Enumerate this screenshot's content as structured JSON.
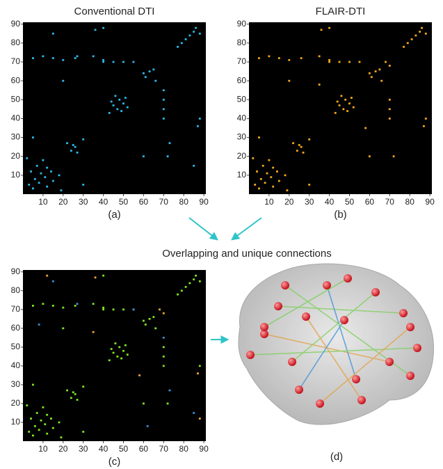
{
  "chart_data": [
    {
      "type": "scatter",
      "title": "Conventional DTI",
      "caption": "(a)",
      "background": "#000000",
      "xlim": [
        0,
        91
      ],
      "ylim": [
        0,
        91
      ],
      "xticks": [
        10,
        20,
        30,
        40,
        50,
        60,
        70,
        80,
        90
      ],
      "yticks": [
        10,
        20,
        30,
        40,
        50,
        60,
        70,
        80,
        90
      ],
      "series": [
        {
          "color": "#2bbbe8",
          "x": [
            3,
            5,
            6,
            8,
            9,
            11,
            12,
            14,
            4,
            12,
            7,
            15,
            10,
            18,
            2,
            19,
            25,
            26,
            24,
            22,
            27,
            30,
            5,
            10,
            15,
            20,
            26,
            35,
            40,
            45,
            50,
            85,
            83,
            81,
            79,
            86,
            88,
            77,
            65,
            63,
            61,
            60,
            66,
            45,
            47,
            48,
            50,
            46,
            52,
            49,
            44,
            51,
            43,
            70,
            70,
            70,
            70,
            40,
            55,
            72,
            30,
            5,
            60,
            20,
            88,
            40,
            15,
            85,
            36,
            87,
            73,
            27
          ],
          "y": [
            5,
            3,
            8,
            6,
            11,
            9,
            14,
            12,
            12,
            4,
            15,
            7,
            18,
            10,
            19,
            2,
            26,
            25,
            23,
            27,
            22,
            29,
            72,
            73,
            72,
            71,
            72,
            73,
            71,
            70,
            70,
            86,
            84,
            82,
            80,
            88,
            85,
            78,
            66,
            65,
            62,
            64,
            60,
            47,
            45,
            50,
            48,
            52,
            46,
            44,
            49,
            51,
            43,
            40,
            45,
            50,
            55,
            70,
            70,
            20,
            5,
            30,
            20,
            60,
            40,
            88,
            85,
            15,
            87,
            36,
            27,
            73
          ]
        }
      ]
    },
    {
      "type": "scatter",
      "title": "FLAIR-DTI",
      "caption": "(b)",
      "background": "#000000",
      "xlim": [
        0,
        91
      ],
      "ylim": [
        0,
        91
      ],
      "xticks": [
        10,
        20,
        30,
        40,
        50,
        60,
        70,
        80,
        90
      ],
      "yticks": [
        10,
        20,
        30,
        40,
        50,
        60,
        70,
        80,
        90
      ],
      "series": [
        {
          "color": "#f5a81c",
          "x": [
            3,
            5,
            6,
            8,
            9,
            11,
            12,
            14,
            4,
            12,
            7,
            15,
            10,
            18,
            2,
            19,
            25,
            26,
            24,
            22,
            27,
            30,
            5,
            10,
            15,
            20,
            26,
            35,
            40,
            45,
            50,
            85,
            83,
            81,
            79,
            86,
            88,
            77,
            65,
            63,
            61,
            60,
            66,
            45,
            47,
            48,
            50,
            46,
            52,
            49,
            44,
            51,
            43,
            70,
            70,
            70,
            40,
            55,
            72,
            30,
            5,
            60,
            20,
            88,
            40,
            68,
            70,
            36,
            87,
            58,
            35
          ],
          "y": [
            5,
            3,
            8,
            6,
            11,
            9,
            14,
            12,
            12,
            4,
            15,
            7,
            18,
            10,
            19,
            2,
            26,
            25,
            23,
            27,
            22,
            29,
            72,
            73,
            72,
            71,
            72,
            73,
            71,
            70,
            70,
            86,
            84,
            82,
            80,
            88,
            85,
            78,
            66,
            65,
            62,
            64,
            60,
            47,
            45,
            50,
            48,
            52,
            46,
            44,
            49,
            51,
            43,
            40,
            45,
            50,
            70,
            70,
            20,
            5,
            30,
            20,
            60,
            40,
            88,
            70,
            68,
            87,
            36,
            35,
            58
          ]
        }
      ]
    },
    {
      "type": "scatter",
      "caption": "(c)",
      "background": "#000000",
      "xlim": [
        0,
        91
      ],
      "ylim": [
        0,
        91
      ],
      "xticks": [
        10,
        20,
        30,
        40,
        50,
        60,
        70,
        80,
        90
      ],
      "yticks": [
        10,
        20,
        30,
        40,
        50,
        60,
        70,
        80,
        90
      ],
      "series": [
        {
          "color": "#80e81e",
          "x": [
            3,
            5,
            6,
            8,
            9,
            11,
            12,
            14,
            4,
            12,
            7,
            15,
            10,
            18,
            2,
            19,
            25,
            26,
            24,
            22,
            27,
            30,
            5,
            10,
            15,
            20,
            26,
            35,
            40,
            45,
            50,
            85,
            83,
            81,
            79,
            86,
            88,
            77,
            65,
            63,
            61,
            60,
            66,
            45,
            47,
            48,
            50,
            46,
            52,
            49,
            44,
            51,
            43,
            70,
            70,
            70,
            40,
            55,
            72,
            30,
            5,
            60,
            20,
            88,
            40
          ],
          "y": [
            5,
            3,
            8,
            6,
            11,
            9,
            14,
            12,
            12,
            4,
            15,
            7,
            18,
            10,
            19,
            2,
            26,
            25,
            23,
            27,
            22,
            29,
            72,
            73,
            72,
            71,
            72,
            73,
            71,
            70,
            70,
            86,
            84,
            82,
            80,
            88,
            85,
            78,
            66,
            65,
            62,
            64,
            60,
            47,
            45,
            50,
            48,
            52,
            46,
            44,
            49,
            51,
            43,
            40,
            45,
            50,
            70,
            70,
            20,
            5,
            30,
            20,
            60,
            40,
            88
          ]
        },
        {
          "color": "#3a8fd8",
          "x": [
            15,
            85,
            73,
            27,
            70,
            55,
            8,
            62
          ],
          "y": [
            85,
            15,
            27,
            73,
            55,
            70,
            62,
            8
          ]
        },
        {
          "color": "#f0a838",
          "x": [
            68,
            70,
            36,
            87,
            58,
            35,
            88,
            12
          ],
          "y": [
            70,
            68,
            87,
            36,
            35,
            58,
            12,
            88
          ]
        }
      ]
    }
  ],
  "annotation": "Overlapping and unique connections",
  "brain_caption": "(d)"
}
